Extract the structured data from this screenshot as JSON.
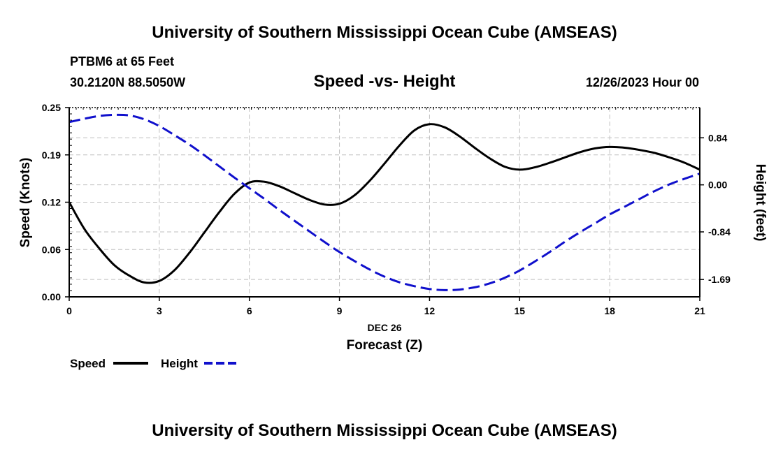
{
  "header": {
    "title": "University of Southern Mississippi Ocean Cube (AMSEAS)",
    "station": "PTBM6 at 65 Feet",
    "location": "30.2120N  88.5050W",
    "chart_title": "Speed -vs- Height",
    "datetime": "12/26/2023 Hour 00"
  },
  "footer": {
    "title": "University of Southern Mississippi Ocean Cube (AMSEAS)"
  },
  "colors": {
    "speed": "#000000",
    "height": "#1010cc",
    "grid": "#bfbfbf"
  },
  "chart_data": {
    "type": "line",
    "title": "Speed -vs- Height",
    "xlabel_top": "DEC 26",
    "xlabel": "Forecast (Z)",
    "ylabel": "Speed (Knots)",
    "y2label": "Height (feet)",
    "xlim": [
      0,
      21
    ],
    "ylim": [
      0,
      0.25
    ],
    "y2lim": [
      -2.0,
      1.38
    ],
    "x_ticks": [
      0,
      3,
      6,
      9,
      12,
      15,
      18,
      21
    ],
    "y_ticks": [
      "0.00",
      "0.06",
      "0.12",
      "0.19",
      "0.25"
    ],
    "y_tick_values": [
      0.0,
      0.0625,
      0.125,
      0.1875,
      0.25
    ],
    "y2_ticks": [
      "-1.69",
      "-0.84",
      "0.00",
      "0.84"
    ],
    "y2_tick_values": [
      -1.69,
      -0.84,
      0.0,
      0.84
    ],
    "legend": [
      {
        "name": "Speed",
        "style": "solid"
      },
      {
        "name": "Height",
        "style": "dashed"
      }
    ],
    "series": [
      {
        "name": "Speed",
        "axis": "left",
        "x": [
          0,
          0.5,
          1,
          1.5,
          2,
          2.5,
          3,
          3.5,
          4,
          4.5,
          5,
          5.5,
          6,
          6.5,
          7,
          7.5,
          8,
          8.5,
          9,
          9.5,
          10,
          10.5,
          11,
          11.5,
          12,
          12.5,
          13,
          13.5,
          14,
          14.5,
          15,
          15.5,
          16,
          16.5,
          17,
          17.5,
          18,
          18.5,
          19,
          19.5,
          20,
          20.5,
          21
        ],
        "values": [
          0.125,
          0.09,
          0.064,
          0.042,
          0.028,
          0.019,
          0.021,
          0.035,
          0.058,
          0.085,
          0.112,
          0.136,
          0.151,
          0.152,
          0.146,
          0.137,
          0.128,
          0.122,
          0.123,
          0.134,
          0.153,
          0.176,
          0.2,
          0.22,
          0.228,
          0.224,
          0.212,
          0.197,
          0.183,
          0.172,
          0.168,
          0.171,
          0.177,
          0.184,
          0.191,
          0.196,
          0.198,
          0.197,
          0.194,
          0.19,
          0.184,
          0.177,
          0.168
        ]
      },
      {
        "name": "Height",
        "axis": "right",
        "x": [
          0,
          0.5,
          1,
          1.5,
          2,
          2.5,
          3,
          3.5,
          4,
          4.5,
          5,
          5.5,
          6,
          6.5,
          7,
          7.5,
          8,
          8.5,
          9,
          9.5,
          10,
          10.5,
          11,
          11.5,
          12,
          12.5,
          13,
          13.5,
          14,
          14.5,
          15,
          15.5,
          16,
          16.5,
          17,
          17.5,
          18,
          18.5,
          19,
          19.5,
          20,
          20.5,
          21
        ],
        "values": [
          1.12,
          1.18,
          1.23,
          1.25,
          1.24,
          1.17,
          1.05,
          0.89,
          0.72,
          0.53,
          0.33,
          0.13,
          -0.06,
          -0.25,
          -0.45,
          -0.64,
          -0.83,
          -1.02,
          -1.2,
          -1.36,
          -1.51,
          -1.64,
          -1.74,
          -1.81,
          -1.86,
          -1.88,
          -1.87,
          -1.83,
          -1.76,
          -1.66,
          -1.53,
          -1.37,
          -1.2,
          -1.02,
          -0.85,
          -0.69,
          -0.53,
          -0.39,
          -0.25,
          -0.11,
          0.01,
          0.11,
          0.2
        ]
      }
    ]
  }
}
